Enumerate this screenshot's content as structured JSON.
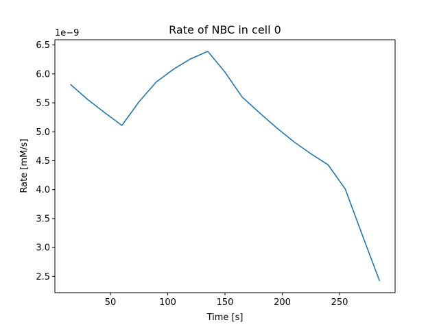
{
  "chart_data": {
    "type": "line",
    "title": "Rate of NBC in cell 0",
    "xlabel": "Time [s]",
    "ylabel": "Rate [mM/s]",
    "y_offset_text": "1e−9",
    "x_ticks": [
      50,
      100,
      150,
      200,
      250
    ],
    "y_ticks": [
      2.5,
      3.0,
      3.5,
      4.0,
      4.5,
      5.0,
      5.5,
      6.0,
      6.5
    ],
    "x_tick_labels": [
      "50",
      "100",
      "150",
      "200",
      "250"
    ],
    "y_tick_labels": [
      "2.5",
      "3.0",
      "3.5",
      "4.0",
      "4.5",
      "5.0",
      "5.5",
      "6.0",
      "6.5"
    ],
    "xlim": [
      1.5,
      298.5
    ],
    "ylim": [
      2.22,
      6.59
    ],
    "grid": false,
    "series": [
      {
        "color": "#1f77b4",
        "x": [
          15,
          30,
          45,
          60,
          75,
          90,
          105,
          120,
          135,
          150,
          165,
          180,
          195,
          210,
          225,
          240,
          255,
          270,
          285
        ],
        "y": [
          5.82,
          5.56,
          5.33,
          5.11,
          5.52,
          5.86,
          6.08,
          6.26,
          6.39,
          6.03,
          5.6,
          5.33,
          5.07,
          4.83,
          4.62,
          4.43,
          4.01,
          3.21,
          2.42
        ]
      }
    ]
  }
}
